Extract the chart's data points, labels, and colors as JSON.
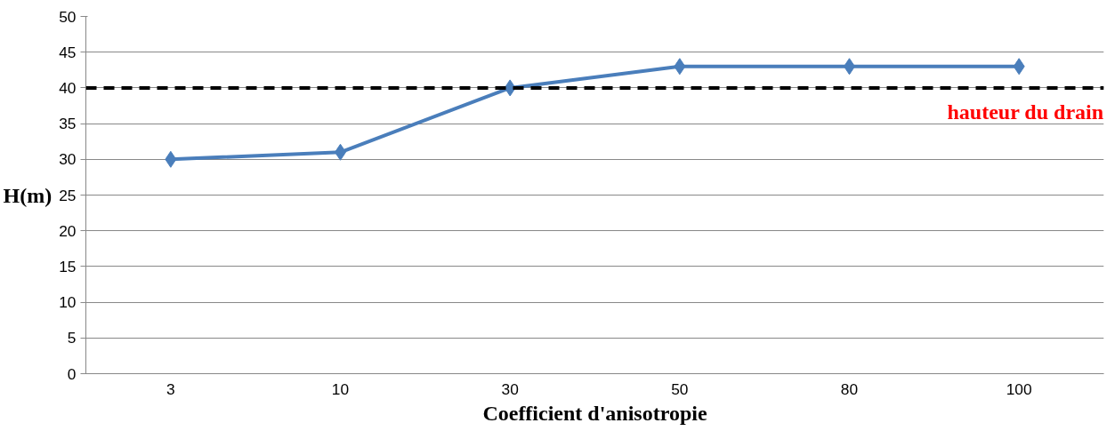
{
  "chart_data": {
    "type": "line",
    "xlabel": "Coefficient d'anisotropie",
    "ylabel": "H(m)",
    "categories": [
      "3",
      "10",
      "30",
      "50",
      "80",
      "100"
    ],
    "series": [
      {
        "color": "#4a7ebb",
        "values": [
          30,
          31,
          40,
          43,
          43,
          43
        ]
      }
    ],
    "ylim": [
      0,
      50
    ],
    "yticks": [
      0,
      5,
      10,
      15,
      20,
      25,
      30,
      35,
      40,
      45,
      50
    ],
    "grid": "y",
    "marker": "diamond",
    "line_style": "solid",
    "ref_lines": [
      {
        "axis": "y",
        "value": 40,
        "label": "hauteur du drain",
        "color": "#000000",
        "line_style": "dashed"
      }
    ]
  }
}
